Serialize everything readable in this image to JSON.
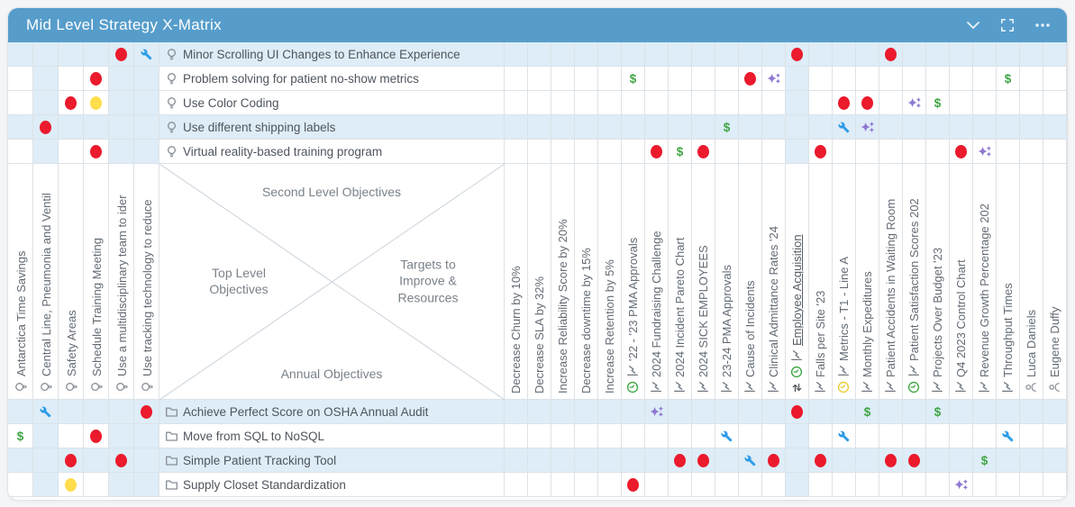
{
  "header": {
    "title": "Mid Level Strategy X-Matrix",
    "icons": [
      "collapse-chevron-icon",
      "fullscreen-icon",
      "more-options-icon"
    ]
  },
  "colors": {
    "header_bg": "#569DCB",
    "highlight_blue": "#DEEDF7",
    "red_dot": "#EB1A2C",
    "yellow_dot": "#FFDD4D",
    "wrench_blue": "#2D9CE8",
    "sparkle_purple": "#8F78D2",
    "dollar_green": "#3FA544"
  },
  "matrix": {
    "center": {
      "top": "Second Level Objectives",
      "left": "Top Level Objectives",
      "right": "Targets to Improve & Resources",
      "bottom": "Annual Objectives"
    },
    "marks_legend": {
      "dollar_symbol": "$"
    },
    "left_columns": [
      {
        "label": "Antarctica Time Savings",
        "icon": "bulb-icon",
        "highlighted": false
      },
      {
        "label": "Central Line, Pneumonia and Ventil",
        "icon": "bulb-icon",
        "highlighted": true
      },
      {
        "label": "Safety Areas",
        "icon": "bulb-icon",
        "highlighted": false
      },
      {
        "label": "Schedule Training Meeting",
        "icon": "bulb-icon",
        "highlighted": false
      },
      {
        "label": "Use a multidisciplinary team to ider",
        "icon": "bulb-icon",
        "highlighted": true
      },
      {
        "label": "Use tracking technology to reduce",
        "icon": "bulb-icon",
        "highlighted": true
      }
    ],
    "right_columns": [
      {
        "label": "Decrease Churn by 10%",
        "icons": [],
        "highlighted": false,
        "underlined": false
      },
      {
        "label": "Decrease SLA by 32%",
        "icons": [],
        "highlighted": false,
        "underlined": false
      },
      {
        "label": "Increase Reliability Score by 20%",
        "icons": [],
        "highlighted": false,
        "underlined": false
      },
      {
        "label": "Decrease downtime by 15%",
        "icons": [],
        "highlighted": false,
        "underlined": false
      },
      {
        "label": "Increase Retention by 5%",
        "icons": [],
        "highlighted": false,
        "underlined": false
      },
      {
        "label": "'22 - '23 PMA Approvals",
        "icons": [
          "clock-green-icon",
          "chart-icon"
        ],
        "highlighted": false,
        "underlined": false
      },
      {
        "label": "2024 Fundraising Challenge",
        "icons": [
          "chart-icon"
        ],
        "highlighted": false,
        "underlined": false
      },
      {
        "label": "2024 Incident Pareto Chart",
        "icons": [
          "chart-icon"
        ],
        "highlighted": false,
        "underlined": false
      },
      {
        "label": "2024 SICK EMPLOYEES",
        "icons": [
          "chart-icon"
        ],
        "highlighted": false,
        "underlined": false
      },
      {
        "label": "23-24 PMA Approvals",
        "icons": [
          "chart-icon"
        ],
        "highlighted": false,
        "underlined": false
      },
      {
        "label": "Cause of Incidents",
        "icons": [
          "chart-icon"
        ],
        "highlighted": false,
        "underlined": false
      },
      {
        "label": "Clinical Admittance Rates '24",
        "icons": [
          "chart-icon"
        ],
        "highlighted": false,
        "underlined": false
      },
      {
        "label": "Employee Acquisition",
        "icons": [
          "sync-icon",
          "clock-green-icon",
          "chart-icon"
        ],
        "highlighted": true,
        "underlined": true
      },
      {
        "label": "Falls per Site '23",
        "icons": [
          "chart-icon"
        ],
        "highlighted": false,
        "underlined": false
      },
      {
        "label": "Metrics - T1 - Line A",
        "icons": [
          "clock-yellow-icon",
          "chart-icon"
        ],
        "highlighted": false,
        "underlined": false
      },
      {
        "label": "Monthly Expeditures",
        "icons": [
          "chart-icon"
        ],
        "highlighted": false,
        "underlined": false
      },
      {
        "label": "Patient Accidents in Waiting Room",
        "icons": [
          "chart-icon"
        ],
        "highlighted": false,
        "underlined": false
      },
      {
        "label": "Patient Satisfaction Scores 202",
        "icons": [
          "clock-green-icon",
          "chart-icon"
        ],
        "highlighted": false,
        "underlined": false
      },
      {
        "label": "Projects Over Budget '23",
        "icons": [
          "chart-icon"
        ],
        "highlighted": false,
        "underlined": false
      },
      {
        "label": "Q4 2023 Control Chart",
        "icons": [
          "chart-icon"
        ],
        "highlighted": false,
        "underlined": false
      },
      {
        "label": "Revenue Growth Percentage 202",
        "icons": [
          "chart-icon"
        ],
        "highlighted": false,
        "underlined": false
      },
      {
        "label": "Throughput Times",
        "icons": [
          "chart-icon"
        ],
        "highlighted": false,
        "underlined": false
      },
      {
        "label": "Luca Daniels",
        "icons": [
          "person-icon"
        ],
        "highlighted": false,
        "underlined": false
      },
      {
        "label": "Eugene Duffy",
        "icons": [
          "person-icon"
        ],
        "highlighted": false,
        "underlined": false
      }
    ],
    "top_rows": [
      {
        "label": "Minor Scrolling UI Changes to Enhance Experience",
        "icon": "bulb-icon",
        "highlighted": true,
        "marks": {
          "L5": "red",
          "L6": "wrench",
          "R13": "red",
          "R17": "red"
        }
      },
      {
        "label": "Problem solving for patient no-show metrics",
        "icon": "bulb-icon",
        "highlighted": false,
        "marks": {
          "L4": "red",
          "R6": "dollar",
          "R11": "red",
          "R12": "sparkle",
          "R22": "dollar"
        }
      },
      {
        "label": "Use Color Coding",
        "icon": "bulb-icon",
        "highlighted": false,
        "marks": {
          "L3": "red",
          "L4": "yellow",
          "R15": "red",
          "R16": "red",
          "R18": "sparkle",
          "R19": "dollar"
        }
      },
      {
        "label": "Use different shipping labels",
        "icon": "bulb-icon",
        "highlighted": true,
        "marks": {
          "L2": "red",
          "R10": "dollar",
          "R15": "wrench",
          "R16": "sparkle"
        }
      },
      {
        "label": "Virtual reality-based training program",
        "icon": "bulb-icon",
        "highlighted": false,
        "marks": {
          "L4": "red",
          "R7": "red",
          "R8": "dollar",
          "R9": "red",
          "R14": "red",
          "R20": "red",
          "R21": "sparkle"
        }
      }
    ],
    "bottom_rows": [
      {
        "label": "Achieve Perfect Score on OSHA Annual Audit",
        "icon": "folder-icon",
        "highlighted": true,
        "marks": {
          "L2": "wrench",
          "L6": "red",
          "R7": "sparkle",
          "R13": "red",
          "R16": "dollar",
          "R19": "dollar"
        }
      },
      {
        "label": "Move from SQL to NoSQL",
        "icon": "folder-icon",
        "highlighted": false,
        "marks": {
          "L1": "dollar",
          "L4": "red",
          "R10": "wrench",
          "R15": "wrench",
          "R22": "wrench"
        }
      },
      {
        "label": "Simple Patient Tracking Tool",
        "icon": "folder-icon",
        "highlighted": true,
        "marks": {
          "L3": "red",
          "L5": "red",
          "R8": "red",
          "R9": "red",
          "R11": "wrench",
          "R12": "red",
          "R14": "red",
          "R17": "red",
          "R18": "red",
          "R21": "dollar"
        }
      },
      {
        "label": "Supply Closet Standardization",
        "icon": "folder-icon",
        "highlighted": false,
        "marks": {
          "L3": "yellow",
          "R6": "red",
          "R20": "sparkle"
        }
      }
    ]
  }
}
